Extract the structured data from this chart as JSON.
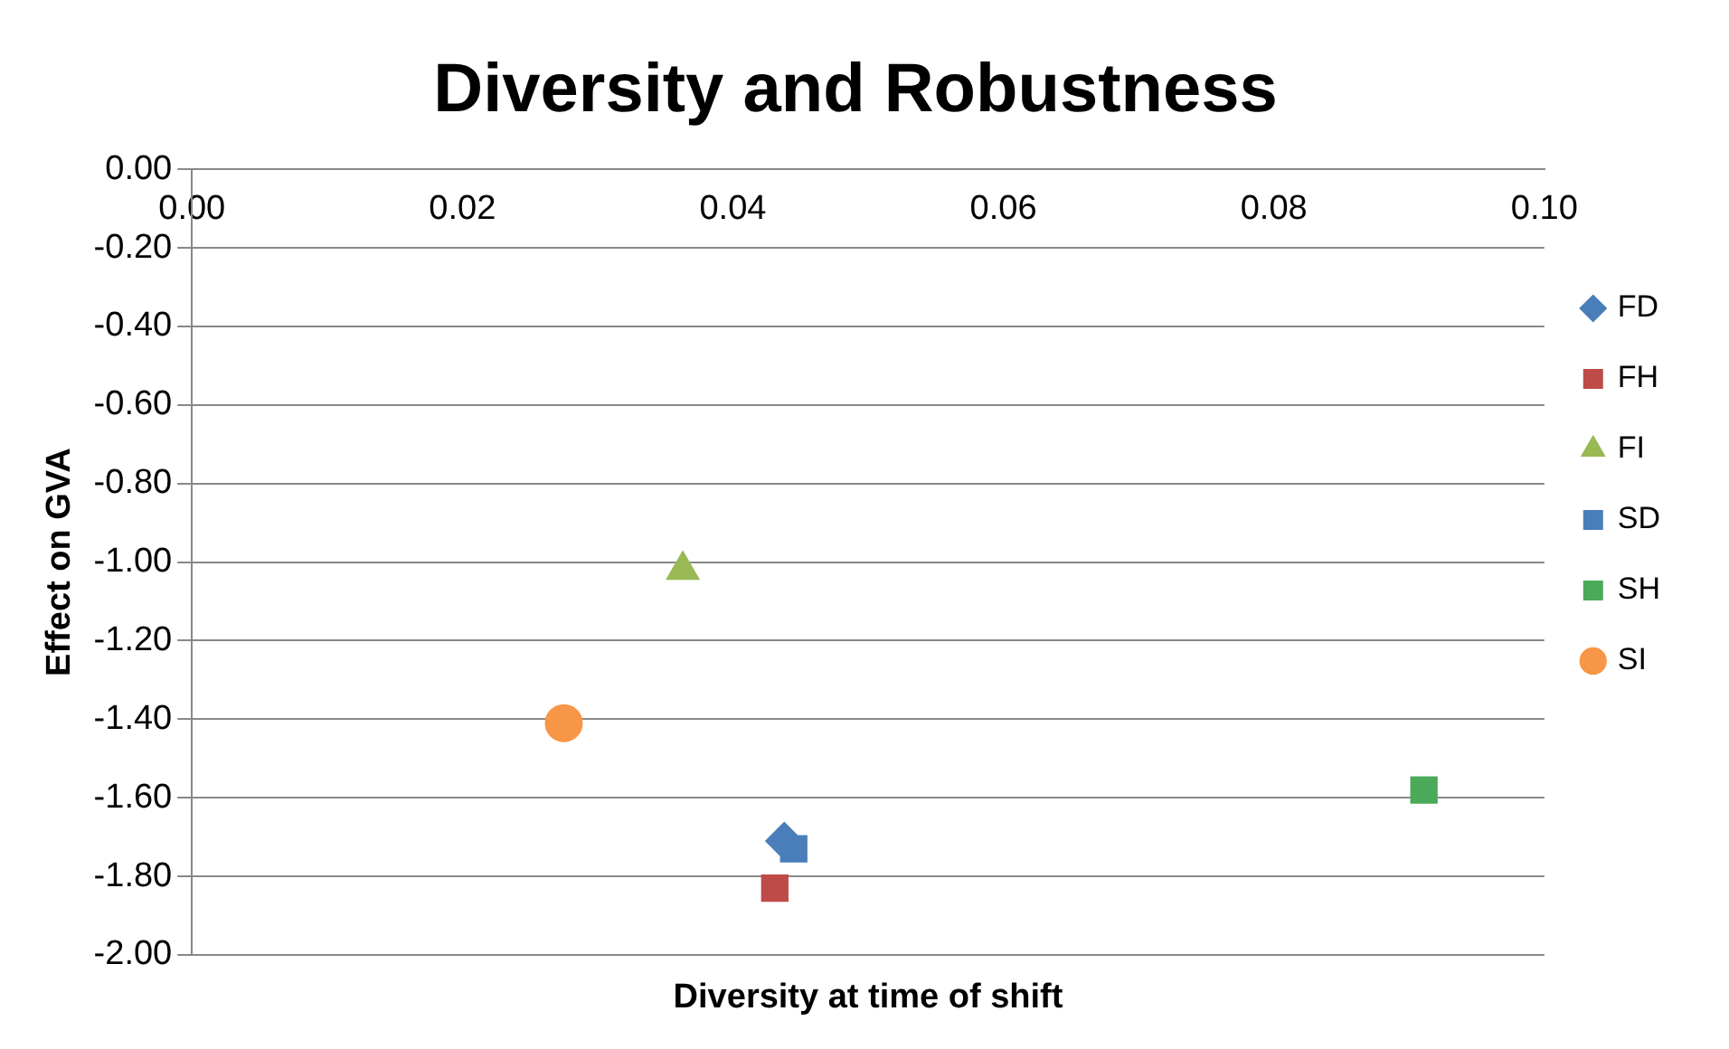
{
  "chart_data": {
    "type": "scatter",
    "title": "Diversity and Robustness",
    "xlabel": "Diversity at time of shift",
    "ylabel": "Effect on GVA",
    "xlim": [
      0,
      0.1
    ],
    "xticks": [
      {
        "value": 0,
        "label": "0.00"
      },
      {
        "value": 0.02,
        "label": "0.02"
      },
      {
        "value": 0.04,
        "label": "0.04"
      },
      {
        "value": 0.06,
        "label": "0.06"
      },
      {
        "value": 0.08,
        "label": "0.08"
      },
      {
        "value": 0.1,
        "label": "0.10"
      }
    ],
    "ylim": [
      -2,
      0
    ],
    "yticks": [
      {
        "value": 0,
        "label": "0.00"
      },
      {
        "value": -0.2,
        "label": "-0.20"
      },
      {
        "value": -0.4,
        "label": "-0.40"
      },
      {
        "value": -0.6,
        "label": "-0.60"
      },
      {
        "value": -0.8,
        "label": "-0.80"
      },
      {
        "value": -1,
        "label": "-1.00"
      },
      {
        "value": -1.2,
        "label": "-1.20"
      },
      {
        "value": -1.4,
        "label": "-1.40"
      },
      {
        "value": -1.6,
        "label": "-1.60"
      },
      {
        "value": -1.8,
        "label": "-1.80"
      },
      {
        "value": -2,
        "label": "-2.00"
      }
    ],
    "grid": "y",
    "legend": "right",
    "series": [
      {
        "name": "FD",
        "color": "#4a7ebb",
        "marker": "diamond",
        "x": [
          0.0438
        ],
        "values": [
          -1.71
        ]
      },
      {
        "name": "FH",
        "color": "#be4b48",
        "marker": "square",
        "x": [
          0.0431
        ],
        "values": [
          -1.83
        ]
      },
      {
        "name": "FI",
        "color": "#98b954",
        "marker": "triangle",
        "x": [
          0.0363
        ],
        "values": [
          -1.02
        ]
      },
      {
        "name": "SD",
        "color": "#4a7ebb",
        "marker": "square",
        "x": [
          0.0445
        ],
        "values": [
          -1.73
        ]
      },
      {
        "name": "SH",
        "color": "#4aaa5a",
        "marker": "square",
        "x": [
          0.0911
        ],
        "values": [
          -1.58
        ]
      },
      {
        "name": "SI",
        "color": "#f79646",
        "marker": "circle",
        "x": [
          0.0275
        ],
        "values": [
          -1.41
        ]
      }
    ]
  }
}
